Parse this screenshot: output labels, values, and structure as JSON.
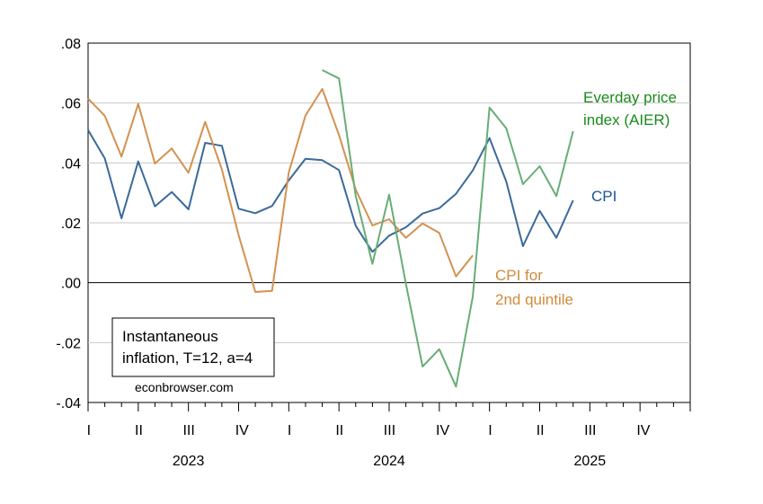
{
  "chart_data": {
    "type": "line",
    "ylim": [
      -0.04,
      0.08
    ],
    "y_ticks": [
      ".08",
      ".06",
      ".04",
      ".02",
      ".00",
      "-.02",
      "-.04"
    ],
    "y_tick_values": [
      0.08,
      0.06,
      0.04,
      0.02,
      0.0,
      -0.02,
      -0.04
    ],
    "quarter_labels": [
      "I",
      "II",
      "III",
      "IV",
      "I",
      "II",
      "III",
      "IV",
      "I",
      "II",
      "III",
      "IV"
    ],
    "year_labels": [
      "2023",
      "2024",
      "2025"
    ],
    "x_start": "2023-01",
    "x_end": "2025-12",
    "grid": "horizontal",
    "series": [
      {
        "name_lines": [
          "CPI"
        ],
        "color": "#3a6a99",
        "start": "2023-01",
        "values": [
          0.051,
          0.0415,
          0.0215,
          0.0405,
          0.0255,
          0.0303,
          0.0245,
          0.0467,
          0.0457,
          0.0247,
          0.0232,
          0.0256,
          0.0342,
          0.0414,
          0.0409,
          0.0376,
          0.019,
          0.0103,
          0.0157,
          0.0185,
          0.0231,
          0.0249,
          0.0297,
          0.0375,
          0.0483,
          0.0338,
          0.0122,
          0.024,
          0.015,
          0.0275
        ]
      },
      {
        "name_lines": [
          "CPI for",
          "2nd quintile"
        ],
        "color": "#d4914f",
        "start": "2023-01",
        "values": [
          0.0615,
          0.0557,
          0.0421,
          0.0597,
          0.0398,
          0.0448,
          0.0367,
          0.0537,
          0.0378,
          0.0159,
          -0.0031,
          -0.0027,
          0.0368,
          0.0558,
          0.0647,
          0.0493,
          0.0311,
          0.0191,
          0.0212,
          0.015,
          0.0198,
          0.0166,
          0.0021,
          0.0091
        ]
      },
      {
        "name_lines": [
          "Everday price",
          "index (AIER)"
        ],
        "color": "#68ad76",
        "start": "2024-03",
        "values": [
          0.071,
          0.0682,
          0.029,
          0.0063,
          0.0294,
          -0.0003,
          -0.028,
          -0.0222,
          -0.0347,
          -0.0046,
          0.0585,
          0.0516,
          0.0329,
          0.0389,
          0.0289,
          0.0506
        ]
      }
    ]
  },
  "note": {
    "lines": [
      "Instantaneous",
      "inflation, T=12, a=4"
    ],
    "source": "econbrowser.com"
  },
  "label_colors": {
    "cpi": "#1f5595",
    "quintile": "#d08a3c",
    "aier": "#1a8a1a"
  }
}
